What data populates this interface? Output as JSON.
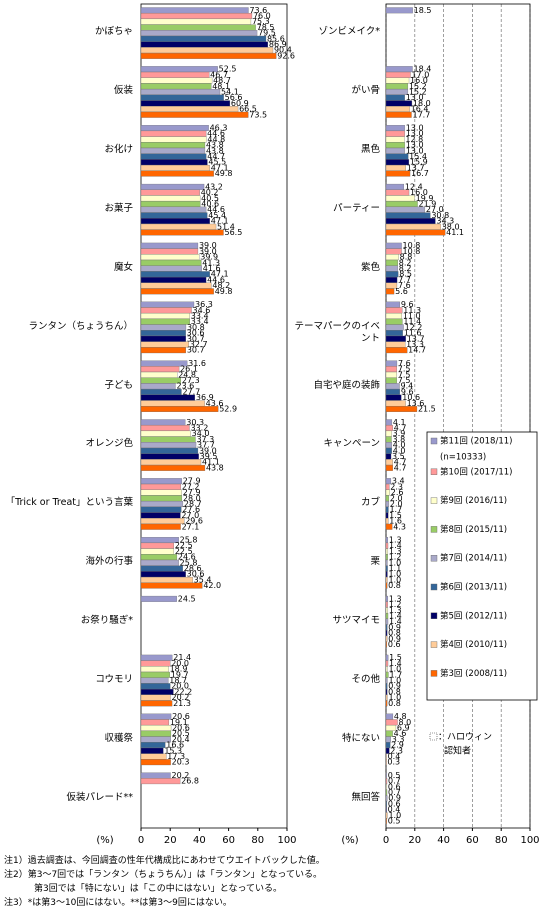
{
  "chart_data": [
    {
      "type": "bar",
      "orientation": "horizontal",
      "x_label": "(%)",
      "xlim": [
        0,
        100
      ],
      "xticks": [
        0,
        20,
        40,
        60,
        80,
        100
      ],
      "grid": false,
      "categories": [
        "かぼちゃ",
        "仮装",
        "お化け",
        "お菓子",
        "魔女",
        "ランタン（ちょうちん）",
        "子ども",
        "オレンジ色",
        "「Trick or Treat」という言葉",
        "海外の行事",
        "お祭り騒ぎ*",
        "コウモリ",
        "収穫祭",
        "仮装パレード**"
      ],
      "series": [
        {
          "color": "#9999cc",
          "values": [
            73.6,
            52.5,
            46.3,
            43.2,
            39.0,
            36.3,
            31.6,
            30.3,
            27.9,
            25.8,
            24.5,
            21.4,
            20.6,
            20.2
          ],
          "value_labels": [
            "73.6",
            "52.5",
            "46.3",
            "43.2",
            "39.0",
            "36.3",
            "31.6",
            "30.3",
            "27.9",
            "25.8",
            "24.5",
            "21.4",
            "20.6",
            "20.2"
          ]
        },
        {
          "color": "#ff9999",
          "values": [
            76.0,
            46.7,
            44.6,
            40.2,
            39.0,
            34.6,
            26.1,
            33.2,
            27.2,
            22.5,
            null,
            20.0,
            19.1,
            26.8
          ],
          "value_labels": [
            "76.0",
            "46.7",
            "44.6",
            "40.2",
            "39.0",
            "34.6",
            "26.1",
            "33.2",
            "27.2",
            "22.5",
            null,
            "20.0",
            "19.1",
            "26.8"
          ]
        },
        {
          "color": "#ffffcc",
          "values": [
            75.3,
            48.7,
            44.8,
            40.5,
            39.9,
            33.4,
            24.8,
            34.0,
            27.9,
            22.5,
            null,
            18.9,
            20.6,
            null
          ],
          "value_labels": [
            "75.3",
            "48.7",
            "44.8",
            "40.5",
            "39.9",
            "33.4",
            "24.8",
            "34.0",
            "27.9",
            "22.5",
            null,
            "18.9",
            "20.6",
            null
          ]
        },
        {
          "color": "#99cc66",
          "values": [
            78.5,
            48.1,
            43.8,
            40.6,
            41.3,
            33.4,
            27.3,
            37.3,
            28.0,
            24.6,
            null,
            19.7,
            20.5,
            null
          ],
          "value_labels": [
            "78.5",
            "48.1",
            "43.8",
            "40.6",
            "41.3",
            "33.4",
            "27.3",
            "37.3",
            "28.0",
            "24.6",
            null,
            "19.7",
            "20.5",
            null
          ]
        },
        {
          "color": "#a9a9c9",
          "values": [
            79.5,
            54.1,
            43.8,
            44.6,
            41.6,
            30.8,
            23.6,
            37.7,
            28.7,
            25.8,
            null,
            18.7,
            20.4,
            null
          ],
          "value_labels": [
            "79.5",
            "54.1",
            "43.8",
            "44.6",
            "41.6",
            "30.8",
            "23.6",
            "37.7",
            "28.7",
            "25.8",
            null,
            "18.7",
            "20.4",
            null
          ]
        },
        {
          "color": "#336699",
          "values": [
            85.6,
            56.6,
            44.7,
            45.4,
            47.1,
            30.6,
            27.7,
            39.0,
            27.6,
            28.6,
            null,
            20.0,
            16.6,
            null
          ],
          "value_labels": [
            "85.6",
            "56.6",
            "44.7",
            "45.4",
            "47.1",
            "30.6",
            "27.7",
            "39.0",
            "27.6",
            "28.6",
            null,
            "20.0",
            "16.6",
            null
          ]
        },
        {
          "color": "#000066",
          "values": [
            86.9,
            60.9,
            45.5,
            47.1,
            44.6,
            30.7,
            36.9,
            39.5,
            27.0,
            30.6,
            null,
            22.2,
            15.3,
            null
          ],
          "value_labels": [
            "86.9",
            "60.9",
            "45.5",
            "47.1",
            "44.6",
            "30.7",
            "36.9",
            "39.5",
            "27.0",
            "30.6",
            null,
            "22.2",
            "15.3",
            null
          ]
        },
        {
          "color": "#ffcc99",
          "values": [
            90.4,
            66.5,
            47.1,
            51.4,
            48.2,
            32.7,
            43.6,
            41.1,
            29.6,
            35.4,
            null,
            20.2,
            17.3,
            null
          ],
          "value_labels": [
            "90.4",
            "66.5",
            "47.1",
            "51.4",
            "48.2",
            "32.7",
            "43.6",
            "41.1",
            "29.6",
            "35.4",
            null,
            "20.2",
            "17.3",
            null
          ]
        },
        {
          "color": "#ff6600",
          "values": [
            92.6,
            73.5,
            49.8,
            56.5,
            49.8,
            30.7,
            52.9,
            43.8,
            27.1,
            42.0,
            null,
            21.3,
            20.3,
            null
          ],
          "value_labels": [
            "92.6",
            "73.5",
            "49.8",
            "56.5",
            "49.8",
            "30.7",
            "52.9",
            "43.8",
            "27.1",
            "42.0",
            null,
            "21.3",
            "20.3",
            null
          ]
        }
      ]
    },
    {
      "type": "bar",
      "orientation": "horizontal",
      "x_label": "(%)",
      "xlim": [
        0,
        100
      ],
      "xticks": [
        0,
        20,
        40,
        60,
        80,
        100
      ],
      "grid": true,
      "categories": [
        "ゾンビメイク*",
        "がい骨",
        "黒色",
        "パーティー",
        "紫色",
        "テーマパークのイベント",
        "自宅や庭の装飾",
        "キャンペーン",
        "カブ",
        "栗",
        "サツマイモ",
        "その他",
        "特にない",
        "無回答"
      ],
      "legend_note": "(n=10333)",
      "annotation": [
        "：ハロウィン",
        "認知者"
      ],
      "series": [
        {
          "name": "第11回 (2018/11)",
          "color": "#9999cc",
          "values": [
            18.5,
            18.4,
            13.0,
            12.4,
            10.8,
            9.6,
            7.6,
            4.1,
            3.4,
            1.3,
            1.3,
            1.5,
            4.8,
            0.5
          ],
          "value_labels": [
            "18.5",
            "18.4",
            "13.0",
            "12.4",
            "10.8",
            "9.6",
            "7.6",
            "4.1",
            "3.4",
            "1.3",
            "1.3",
            "1.5",
            "4.8",
            "0.5"
          ]
        },
        {
          "name": "第10回 (2017/11)",
          "color": "#ff9999",
          "values": [
            null,
            17.0,
            13.0,
            16.0,
            10.8,
            11.3,
            7.5,
            4.7,
            2.3,
            1.4,
            1.2,
            1.4,
            8.0,
            0.7
          ],
          "value_labels": [
            null,
            "17.0",
            "13.0",
            "16.0",
            "10.8",
            "11.3",
            "7.5",
            "4.7",
            "2.3",
            "1.4",
            "1.2",
            "1.4",
            "8.0",
            "0.7"
          ]
        },
        {
          "name": "第9回 (2016/11)",
          "color": "#ffffcc",
          "values": [
            null,
            16.0,
            12.8,
            19.9,
            8.8,
            11.0,
            7.5,
            3.9,
            2.6,
            1.3,
            1.3,
            1.0,
            6.9,
            0.6
          ],
          "value_labels": [
            null,
            "16.0",
            "12.8",
            "19.9",
            "8.8",
            "11.0",
            "7.5",
            "3.9",
            "2.6",
            "1.3",
            "1.3",
            "1.0",
            "6.9",
            "0.6"
          ]
        },
        {
          "name": "第8回 (2015/11)",
          "color": "#99cc66",
          "values": [
            null,
            15.2,
            13.0,
            21.9,
            8.2,
            11.4,
            7.5,
            3.8,
            2.0,
            1.2,
            1.4,
            1.7,
            4.6,
            0.7
          ],
          "value_labels": [
            null,
            "15.2",
            "13.0",
            "21.9",
            "8.2",
            "11.4",
            "7.5",
            "3.8",
            "2.0",
            "1.2",
            "1.4",
            "1.7",
            "4.6",
            "0.7"
          ]
        },
        {
          "name": "第7回 (2014/11)",
          "color": "#a9a9c9",
          "values": [
            null,
            15.2,
            13.0,
            27.0,
            8.2,
            12.2,
            9.4,
            4.0,
            2.0,
            1.0,
            1.4,
            1.0,
            3.3,
            0.9
          ],
          "value_labels": [
            null,
            "15.2",
            "13.0",
            "27.0",
            "8.2",
            "12.2",
            "9.4",
            "4.0",
            "2.0",
            "1.0",
            "1.4",
            "1.0",
            "3.3",
            "0.9"
          ]
        },
        {
          "name": "第6回 (2013/11)",
          "color": "#336699",
          "values": [
            null,
            13.0,
            15.4,
            30.8,
            8.5,
            11.6,
            9.6,
            4.0,
            1.7,
            1.1,
            0.9,
            0.9,
            2.9,
            0.6
          ],
          "value_labels": [
            null,
            "13.0",
            "15.4",
            "30.8",
            "8.5",
            "11.6",
            "9.6",
            "4.0",
            "1.7",
            "1.1",
            "0.9",
            "0.9",
            "2.9",
            "0.6"
          ]
        },
        {
          "name": "第5回 (2012/11)",
          "color": "#000066",
          "values": [
            null,
            18.0,
            15.9,
            34.3,
            7.7,
            13.7,
            10.6,
            3.5,
            1.5,
            1.0,
            0.8,
            0.8,
            2.3,
            0.4
          ],
          "value_labels": [
            null,
            "18.0",
            "15.9",
            "34.3",
            "7.7",
            "13.7",
            "10.6",
            "3.5",
            "1.5",
            "1.0",
            "0.8",
            "0.8",
            "2.3",
            "0.4"
          ]
        },
        {
          "name": "第4回 (2010/11)",
          "color": "#ffcc99",
          "values": [
            null,
            16.4,
            13.7,
            38.0,
            7.6,
            13.3,
            13.6,
            4.7,
            1.6,
            1.0,
            0.9,
            1.0,
            0.4,
            1.0
          ],
          "value_labels": [
            null,
            "16.4",
            "13.7",
            "38.0",
            "7.6",
            "13.3",
            "13.6",
            "4.7",
            "1.6",
            "1.0",
            "0.9",
            "1.0",
            "0.4",
            "1.0"
          ]
        },
        {
          "name": "第3回 (2008/11)",
          "color": "#ff6600",
          "values": [
            null,
            17.7,
            16.7,
            41.1,
            5.6,
            14.7,
            21.5,
            4.7,
            4.3,
            0.8,
            0.6,
            0.8,
            0.3,
            0.5
          ],
          "value_labels": [
            null,
            "17.7",
            "16.7",
            "41.1",
            "5.6",
            "14.7",
            "21.5",
            "4.7",
            "4.3",
            "0.8",
            "0.6",
            "0.8",
            "0.3",
            "0.5"
          ]
        }
      ]
    }
  ],
  "notes": [
    "注1）過去調査は、今回調査の性年代構成比にあわせてウエイトバックした値。",
    "注2）第3～7回では「ランタン（ちょうちん）」は「ランタン」となっている。",
    "第3回では「特にない」は「この中にはない」となっている。",
    "注3）*は第3～10回にはない。**は第3～9回にはない。"
  ]
}
